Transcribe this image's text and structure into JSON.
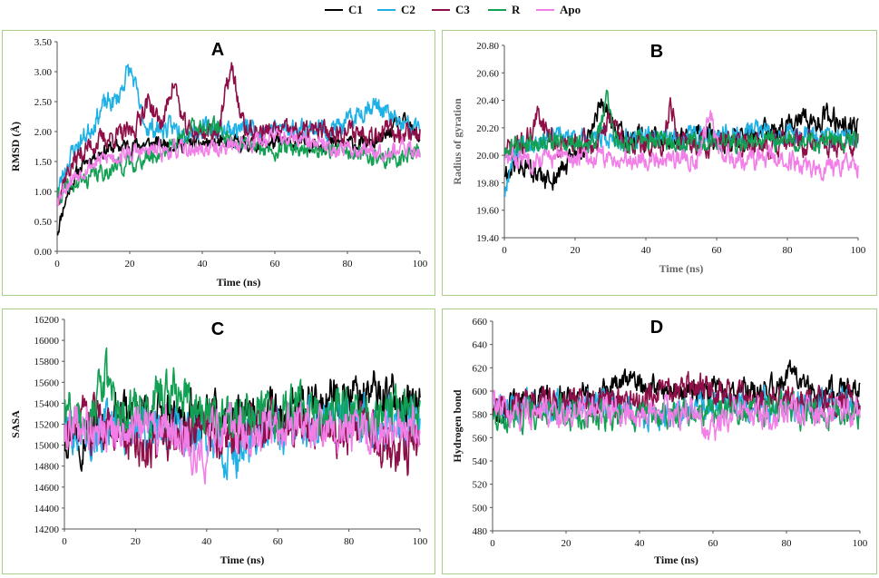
{
  "legend": [
    {
      "name": "C1",
      "color": "#000000"
    },
    {
      "name": "C2",
      "color": "#1fb0e6"
    },
    {
      "name": "C3",
      "color": "#8e0f47"
    },
    {
      "name": "R",
      "color": "#12a052"
    },
    {
      "name": "Apo",
      "color": "#f27ee8"
    }
  ],
  "chart_data": [
    {
      "id": "A",
      "type": "line",
      "title": "A",
      "xlabel": "Time (ns)",
      "ylabel": "RMSD (Å)",
      "xlim": [
        0,
        100
      ],
      "ylim": [
        0,
        3.5
      ],
      "xticks": [
        "0",
        "20",
        "40",
        "60",
        "80",
        "100"
      ],
      "yticks": [
        "0.00",
        "0.50",
        "1.00",
        "1.50",
        "2.00",
        "2.50",
        "3.00",
        "3.50"
      ],
      "series": [
        {
          "name": "C1",
          "start": 0.3,
          "plateau": 1.8,
          "rise": 5,
          "noise": 0.1,
          "seed": 11,
          "bumps": [
            [
              95,
              0.35,
              3
            ]
          ]
        },
        {
          "name": "C2",
          "start": 0.9,
          "plateau": 2.05,
          "rise": 4,
          "noise": 0.14,
          "seed": 23,
          "bumps": [
            [
              20,
              0.9,
              2
            ],
            [
              14,
              0.45,
              3
            ],
            [
              87,
              0.4,
              4
            ]
          ]
        },
        {
          "name": "C3",
          "start": 0.9,
          "plateau": 2.0,
          "rise": 6,
          "noise": 0.14,
          "seed": 37,
          "bumps": [
            [
              32,
              0.8,
              1.5
            ],
            [
              48,
              1.0,
              1.6
            ],
            [
              25,
              0.5,
              2
            ]
          ]
        },
        {
          "name": "R",
          "start": 0.9,
          "plateau": 1.75,
          "rise": 18,
          "noise": 0.12,
          "seed": 41,
          "bumps": [
            [
              40,
              0.45,
              6
            ],
            [
              90,
              -0.2,
              8
            ]
          ]
        },
        {
          "name": "Apo",
          "start": 0.9,
          "plateau": 1.7,
          "rise": 8,
          "noise": 0.12,
          "seed": 53,
          "bumps": [
            [
              60,
              0.2,
              8
            ]
          ]
        }
      ]
    },
    {
      "id": "B",
      "type": "line",
      "title": "B",
      "xlabel": "Time (ns)",
      "ylabel": "Radius of gyration",
      "xlim": [
        0,
        100
      ],
      "ylim": [
        19.4,
        20.8
      ],
      "xticks": [
        "0",
        "20",
        "40",
        "60",
        "80",
        "100"
      ],
      "yticks": [
        "19.40",
        "19.60",
        "19.80",
        "20.00",
        "20.20",
        "20.40",
        "20.60",
        "20.80"
      ],
      "series": [
        {
          "name": "C1",
          "start": 19.85,
          "plateau": 20.12,
          "rise": 3,
          "noise": 0.07,
          "seed": 61,
          "bumps": [
            [
              12,
              -0.3,
              6
            ],
            [
              28,
              0.25,
              2
            ],
            [
              90,
              0.15,
              10
            ]
          ]
        },
        {
          "name": "C2",
          "start": 19.7,
          "plateau": 20.12,
          "rise": 2,
          "noise": 0.06,
          "seed": 67,
          "bumps": [
            [
              70,
              0.06,
              12
            ]
          ]
        },
        {
          "name": "C3",
          "start": 20.0,
          "plateau": 20.08,
          "rise": 2,
          "noise": 0.07,
          "seed": 71,
          "bumps": [
            [
              47,
              0.3,
              1
            ],
            [
              10,
              0.2,
              2
            ],
            [
              30,
              0.2,
              1.5
            ]
          ]
        },
        {
          "name": "R",
          "start": 20.0,
          "plateau": 20.1,
          "rise": 2,
          "noise": 0.06,
          "seed": 79,
          "bumps": [
            [
              29,
              0.3,
              1.2
            ]
          ]
        },
        {
          "name": "Apo",
          "start": 19.95,
          "plateau": 19.98,
          "rise": 2,
          "noise": 0.06,
          "seed": 83,
          "bumps": [
            [
              58,
              0.3,
              1.5
            ],
            [
              93,
              -0.08,
              8
            ]
          ]
        }
      ]
    },
    {
      "id": "C",
      "type": "line",
      "title": "C",
      "xlabel": "Time (ns)",
      "ylabel": "SASA",
      "xlim": [
        0,
        100
      ],
      "ylim": [
        14200,
        16200
      ],
      "xticks": [
        "0",
        "20",
        "40",
        "60",
        "80",
        "100"
      ],
      "yticks": [
        "14200",
        "14400",
        "14600",
        "14800",
        "15000",
        "15200",
        "15400",
        "15600",
        "15800",
        "16000",
        "16200"
      ],
      "series": [
        {
          "name": "C1",
          "start": 15200,
          "plateau": 15250,
          "rise": 1,
          "noise": 170,
          "seed": 97,
          "bumps": [
            [
              85,
              250,
              12
            ],
            [
              5,
              -150,
              4
            ]
          ]
        },
        {
          "name": "C2",
          "start": 15200,
          "plateau": 15150,
          "rise": 1,
          "noise": 180,
          "seed": 101,
          "bumps": [
            [
              47,
              -300,
              3
            ],
            [
              80,
              120,
              10
            ]
          ]
        },
        {
          "name": "C3",
          "start": 15200,
          "plateau": 15150,
          "rise": 1,
          "noise": 190,
          "seed": 103,
          "bumps": [
            [
              25,
              -250,
              3
            ],
            [
              95,
              -250,
              4
            ]
          ]
        },
        {
          "name": "R",
          "start": 15300,
          "plateau": 15300,
          "rise": 1,
          "noise": 180,
          "seed": 107,
          "bumps": [
            [
              11,
              350,
              1.5
            ],
            [
              30,
              200,
              4
            ]
          ]
        },
        {
          "name": "Apo",
          "start": 15200,
          "plateau": 15150,
          "rise": 1,
          "noise": 170,
          "seed": 109,
          "bumps": [
            [
              38,
              -250,
              3
            ]
          ]
        }
      ]
    },
    {
      "id": "D",
      "type": "line",
      "title": "D",
      "xlabel": "Time (ns)",
      "ylabel": "Hydrogen bond",
      "xlim": [
        0,
        100
      ],
      "ylim": [
        480,
        660
      ],
      "xticks": [
        "0",
        "20",
        "40",
        "60",
        "80",
        "100"
      ],
      "yticks": [
        "480",
        "500",
        "520",
        "540",
        "560",
        "580",
        "600",
        "620",
        "640",
        "660"
      ],
      "series": [
        {
          "name": "C1",
          "start": 585,
          "plateau": 600,
          "rise": 20,
          "noise": 9,
          "seed": 113,
          "bumps": [
            [
              82,
              15,
              3
            ],
            [
              38,
              12,
              4
            ]
          ]
        },
        {
          "name": "C2",
          "start": 590,
          "plateau": 588,
          "rise": 1,
          "noise": 10,
          "seed": 127,
          "bumps": [
            [
              45,
              -15,
              4
            ]
          ]
        },
        {
          "name": "C3",
          "start": 585,
          "plateau": 592,
          "rise": 10,
          "noise": 10,
          "seed": 131,
          "bumps": [
            [
              55,
              10,
              8
            ]
          ]
        },
        {
          "name": "R",
          "start": 575,
          "plateau": 580,
          "rise": 2,
          "noise": 10,
          "seed": 137,
          "bumps": [
            [
              75,
              5,
              6
            ]
          ]
        },
        {
          "name": "Apo",
          "start": 590,
          "plateau": 582,
          "rise": 1,
          "noise": 10,
          "seed": 139,
          "bumps": [
            [
              60,
              -20,
              2
            ]
          ]
        }
      ]
    }
  ]
}
